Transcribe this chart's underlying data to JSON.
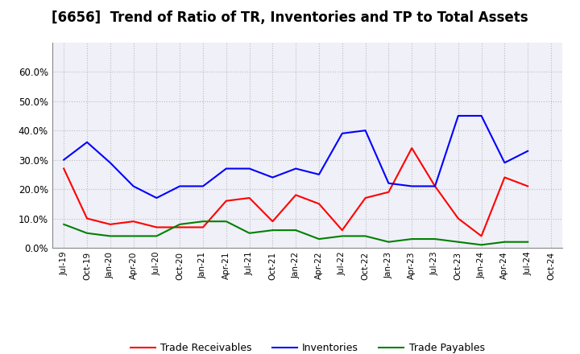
{
  "title": "[6656]  Trend of Ratio of TR, Inventories and TP to Total Assets",
  "x_labels": [
    "Jul-19",
    "Oct-19",
    "Jan-20",
    "Apr-20",
    "Jul-20",
    "Oct-20",
    "Jan-21",
    "Apr-21",
    "Jul-21",
    "Oct-21",
    "Jan-22",
    "Apr-22",
    "Jul-22",
    "Oct-22",
    "Jan-23",
    "Apr-23",
    "Jul-23",
    "Oct-23",
    "Jan-24",
    "Apr-24",
    "Jul-24",
    "Oct-24"
  ],
  "trade_receivables": [
    0.27,
    0.1,
    0.08,
    0.09,
    0.07,
    0.07,
    0.07,
    0.16,
    0.17,
    0.09,
    0.18,
    0.15,
    0.06,
    0.17,
    0.19,
    0.34,
    0.21,
    0.1,
    0.04,
    0.24,
    0.21,
    null
  ],
  "inventories": [
    0.3,
    0.36,
    0.29,
    0.21,
    0.17,
    0.21,
    0.21,
    0.27,
    0.27,
    0.24,
    0.27,
    0.25,
    0.39,
    0.4,
    0.22,
    0.21,
    0.21,
    0.45,
    0.45,
    0.29,
    0.33,
    null
  ],
  "trade_payables": [
    0.08,
    0.05,
    0.04,
    0.04,
    0.04,
    0.08,
    0.09,
    0.09,
    0.05,
    0.06,
    0.06,
    0.03,
    0.04,
    0.04,
    0.02,
    0.03,
    0.03,
    0.02,
    0.01,
    0.02,
    0.02,
    null
  ],
  "tr_color": "#ff0000",
  "inv_color": "#0000ff",
  "tp_color": "#008000",
  "ylim": [
    0.0,
    0.7
  ],
  "yticks": [
    0.0,
    0.1,
    0.2,
    0.3,
    0.4,
    0.5,
    0.6
  ],
  "background_color": "#ffffff",
  "plot_bg_color": "#f0f0f8",
  "grid_color": "#aaaaaa",
  "title_fontsize": 12,
  "legend_labels": [
    "Trade Receivables",
    "Inventories",
    "Trade Payables"
  ]
}
